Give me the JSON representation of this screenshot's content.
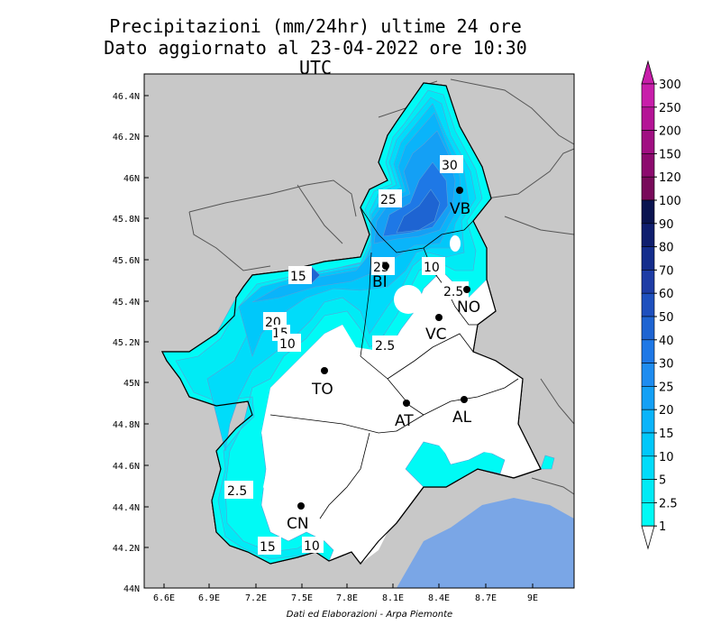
{
  "title": {
    "line1": "Precipitazioni (mm/24hr) ultime 24 ore",
    "line2": "Dato aggiornato al 23-04-2022 ore 10:30 UTC"
  },
  "credit": "Dati ed Elaborazioni - Arpa Piemonte",
  "axes": {
    "lat_ticks": [
      "46.4N",
      "46.2N",
      "46N",
      "45.8N",
      "45.6N",
      "45.4N",
      "45.2N",
      "45N",
      "44.8N",
      "44.6N",
      "44.4N",
      "44.2N",
      "44N"
    ],
    "lon_ticks": [
      "6.6E",
      "6.9E",
      "7.2E",
      "7.5E",
      "7.8E",
      "8.1E",
      "8.4E",
      "8.7E",
      "9E"
    ]
  },
  "colors": {
    "land_outside": "#c8c8c8",
    "sea": "#7aa6e6",
    "no_rain": "#ffffff"
  },
  "legend": {
    "unit": "mm/24hr",
    "levels": [
      {
        "label": "300",
        "color": "#c81eaa"
      },
      {
        "label": "250",
        "color": "#b41496"
      },
      {
        "label": "200",
        "color": "#a00f82"
      },
      {
        "label": "150",
        "color": "#8c0a6e"
      },
      {
        "label": "120",
        "color": "#780a5a"
      },
      {
        "label": "100",
        "color": "#0a1450"
      },
      {
        "label": "90",
        "color": "#0f1e6e"
      },
      {
        "label": "80",
        "color": "#142d8c"
      },
      {
        "label": "70",
        "color": "#1e3ca5"
      },
      {
        "label": "60",
        "color": "#1e50be"
      },
      {
        "label": "50",
        "color": "#1e64d2"
      },
      {
        "label": "40",
        "color": "#1e78e6"
      },
      {
        "label": "30",
        "color": "#1e8cf0"
      },
      {
        "label": "25",
        "color": "#14a0f5"
      },
      {
        "label": "20",
        "color": "#0ab4fa"
      },
      {
        "label": "15",
        "color": "#00c8fa"
      },
      {
        "label": "10",
        "color": "#00dcfa"
      },
      {
        "label": "5",
        "color": "#00ebf5"
      },
      {
        "label": "2.5",
        "color": "#00faf5"
      },
      {
        "label": "1",
        "color": "#ffffff"
      }
    ]
  },
  "cities": [
    {
      "code": "VB"
    },
    {
      "code": "BI"
    },
    {
      "code": "NO"
    },
    {
      "code": "VC"
    },
    {
      "code": "TO"
    },
    {
      "code": "AT"
    },
    {
      "code": "AL"
    },
    {
      "code": "CN"
    }
  ],
  "contour_labels": [
    "30",
    "25",
    "25",
    "10",
    "2.5",
    "15",
    "20",
    "15",
    "10",
    "2.5",
    "2.5",
    "15",
    "10"
  ]
}
